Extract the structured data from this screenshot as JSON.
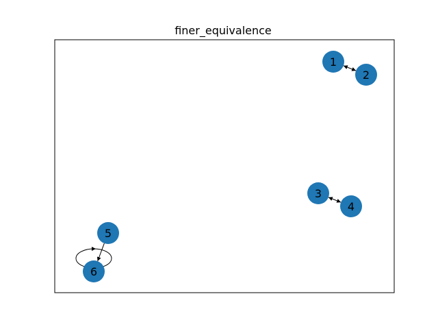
{
  "title": "finer_equivalence",
  "colors": {
    "node_fill": "#1f77b4",
    "edge": "#000000",
    "frame": "#000000",
    "background": "#ffffff"
  },
  "nodes": [
    {
      "id": "1",
      "label": "1"
    },
    {
      "id": "2",
      "label": "2"
    },
    {
      "id": "3",
      "label": "3"
    },
    {
      "id": "4",
      "label": "4"
    },
    {
      "id": "5",
      "label": "5"
    },
    {
      "id": "6",
      "label": "6"
    }
  ],
  "edges": [
    {
      "source": "1",
      "target": "2",
      "directed": true,
      "bidirectional": true
    },
    {
      "source": "3",
      "target": "4",
      "directed": true,
      "bidirectional": true
    },
    {
      "source": "5",
      "target": "6",
      "directed": true,
      "bidirectional": false
    },
    {
      "source": "6",
      "target": "6",
      "directed": true,
      "self_loop": true
    }
  ]
}
